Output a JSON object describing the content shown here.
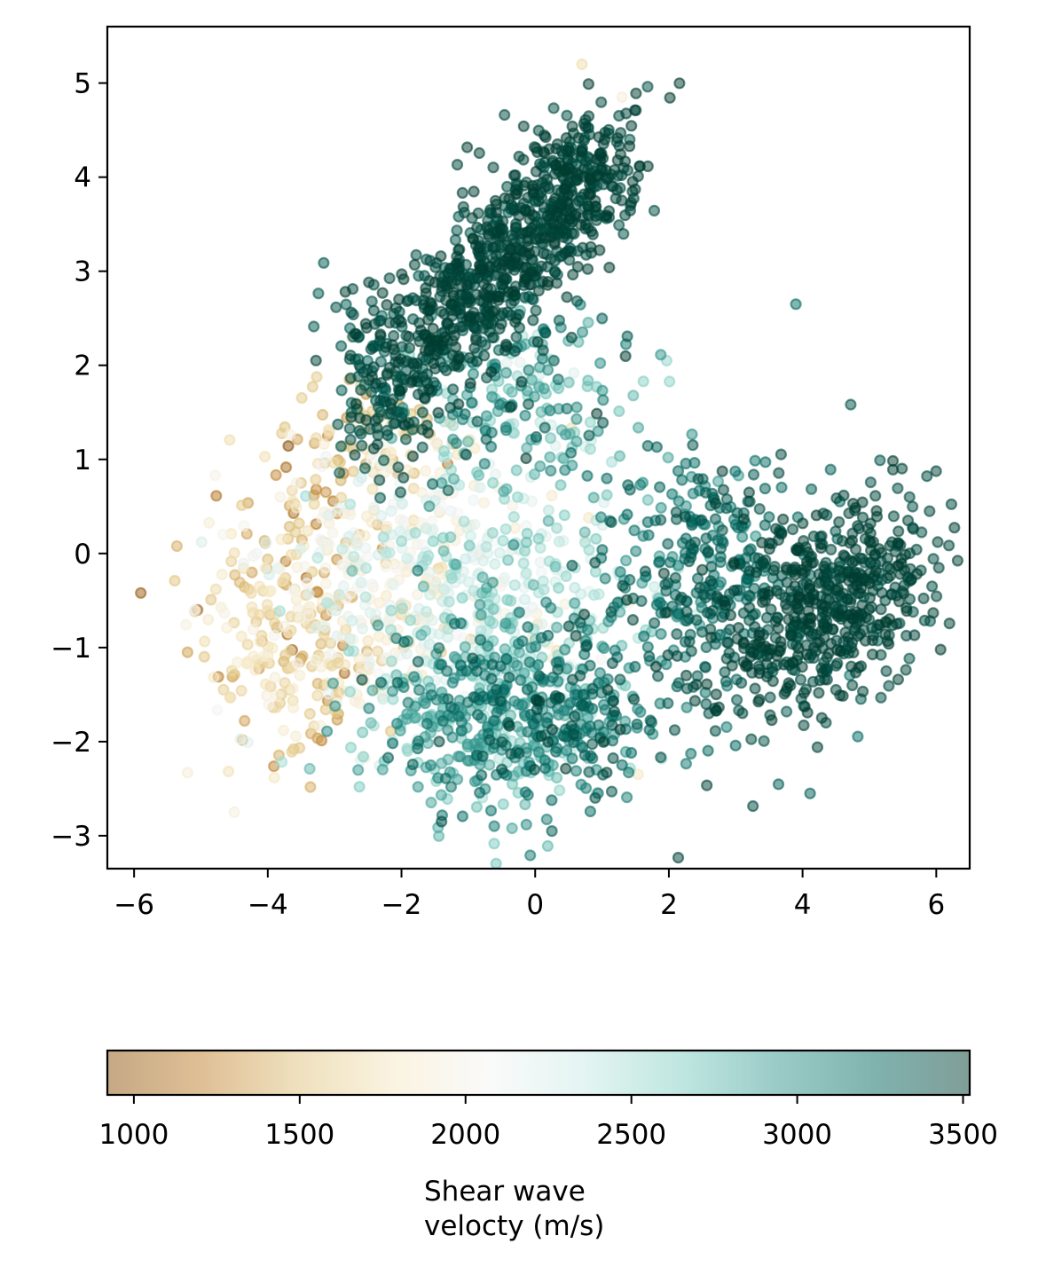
{
  "chart_data": {
    "type": "scatter",
    "title": "",
    "xlabel": "",
    "ylabel": "",
    "xlim": [
      -6.4,
      6.5
    ],
    "ylim": [
      -3.35,
      5.6
    ],
    "xticks": [
      -6,
      -4,
      -2,
      0,
      2,
      4,
      6
    ],
    "yticks": [
      -3,
      -2,
      -1,
      0,
      1,
      2,
      3,
      4,
      5
    ],
    "xtick_labels": [
      "−6",
      "−4",
      "−2",
      "0",
      "2",
      "4",
      "6"
    ],
    "ytick_labels": [
      "−3",
      "−2",
      "−1",
      "0",
      "1",
      "2",
      "3",
      "4",
      "5"
    ],
    "grid": false,
    "colormap": "BrBG",
    "colormap_stops": [
      "#8c510a",
      "#bf812d",
      "#dfc27d",
      "#f6e8c3",
      "#f5f5f5",
      "#c7eae5",
      "#80cdc1",
      "#35978f",
      "#01665e",
      "#003c30"
    ],
    "marker_alpha": 0.5,
    "colorbar": {
      "label": "Shear wave\nvelocty (m/s)",
      "label_lines": [
        "Shear wave",
        "velocty (m/s)"
      ],
      "range": [
        920,
        3520
      ],
      "ticks": [
        1000,
        1500,
        2000,
        2500,
        3000,
        3500
      ],
      "tick_labels": [
        "1000",
        "1500",
        "2000",
        "2500",
        "3000",
        "3500"
      ],
      "orientation": "horizontal",
      "placement": "bottom"
    },
    "clusters": [
      {
        "center": [
          -0.5,
          3.1
        ],
        "spread": [
          1.1,
          0.38
        ],
        "rotation_deg": 37,
        "n": 650,
        "velocity": 3450,
        "velocity_sd": 60
      },
      {
        "center": [
          -2.2,
          1.85
        ],
        "spread": [
          0.45,
          0.5
        ],
        "rotation_deg": 0,
        "n": 150,
        "velocity": 3380,
        "velocity_sd": 90
      },
      {
        "center": [
          0.6,
          3.9
        ],
        "spread": [
          0.45,
          0.35
        ],
        "rotation_deg": 20,
        "n": 160,
        "velocity": 3470,
        "velocity_sd": 40
      },
      {
        "center": [
          4.4,
          -0.55
        ],
        "spread": [
          0.9,
          0.45
        ],
        "rotation_deg": 25,
        "n": 500,
        "velocity": 3460,
        "velocity_sd": 50
      },
      {
        "center": [
          3.1,
          -0.6
        ],
        "spread": [
          0.9,
          0.75
        ],
        "rotation_deg": 10,
        "n": 220,
        "velocity": 3330,
        "velocity_sd": 110
      },
      {
        "center": [
          2.3,
          0.1
        ],
        "spread": [
          0.7,
          0.6
        ],
        "rotation_deg": 0,
        "n": 150,
        "velocity": 3180,
        "velocity_sd": 150
      },
      {
        "center": [
          0.2,
          -1.7
        ],
        "spread": [
          0.9,
          0.5
        ],
        "rotation_deg": 0,
        "n": 300,
        "velocity": 3180,
        "velocity_sd": 160
      },
      {
        "center": [
          -0.9,
          -1.9
        ],
        "spread": [
          0.9,
          0.45
        ],
        "rotation_deg": 0,
        "n": 220,
        "velocity": 2850,
        "velocity_sd": 220
      },
      {
        "center": [
          -0.2,
          1.7
        ],
        "spread": [
          0.8,
          0.55
        ],
        "rotation_deg": 0,
        "n": 220,
        "velocity": 2900,
        "velocity_sd": 320
      },
      {
        "center": [
          -0.5,
          -0.6
        ],
        "spread": [
          1.1,
          0.8
        ],
        "rotation_deg": 0,
        "n": 350,
        "velocity": 2450,
        "velocity_sd": 260
      },
      {
        "center": [
          -1.9,
          0.0
        ],
        "spread": [
          1.0,
          0.75
        ],
        "rotation_deg": 0,
        "n": 300,
        "velocity": 2050,
        "velocity_sd": 220
      },
      {
        "center": [
          -3.6,
          -0.8
        ],
        "spread": [
          0.8,
          0.65
        ],
        "rotation_deg": 0,
        "n": 260,
        "velocity": 1650,
        "velocity_sd": 230
      },
      {
        "center": [
          -3.3,
          0.9
        ],
        "spread": [
          0.5,
          0.5
        ],
        "rotation_deg": 0,
        "n": 45,
        "velocity": 1350,
        "velocity_sd": 220
      },
      {
        "center": [
          -2.3,
          1.25
        ],
        "spread": [
          0.45,
          0.3
        ],
        "rotation_deg": 0,
        "n": 45,
        "velocity": 1550,
        "velocity_sd": 150
      }
    ],
    "outliers": [
      {
        "x": -5.9,
        "y": -0.42,
        "velocity": 1000
      },
      {
        "x": -5.05,
        "y": -0.6,
        "velocity": 1050
      },
      {
        "x": -5.2,
        "y": -1.05,
        "velocity": 1350
      },
      {
        "x": -5.2,
        "y": -2.33,
        "velocity": 1900
      },
      {
        "x": -4.5,
        "y": -2.75,
        "velocity": 1950
      },
      {
        "x": 0.7,
        "y": 5.2,
        "velocity": 1700
      },
      {
        "x": 1.3,
        "y": 4.85,
        "velocity": 1900
      },
      {
        "x": 0.25,
        "y": -2.95,
        "velocity": 3300
      },
      {
        "x": -1.4,
        "y": -2.85,
        "velocity": 3400
      },
      {
        "x": 3.9,
        "y": 2.65,
        "velocity": 3200
      },
      {
        "x": 5.9,
        "y": 0.45,
        "velocity": 3450
      },
      {
        "x": 5.6,
        "y": 0.6,
        "velocity": 3400
      },
      {
        "x": 4.5,
        "y": -1.45,
        "velocity": 3450
      },
      {
        "x": 2.6,
        "y": -1.7,
        "velocity": 3400
      }
    ]
  }
}
